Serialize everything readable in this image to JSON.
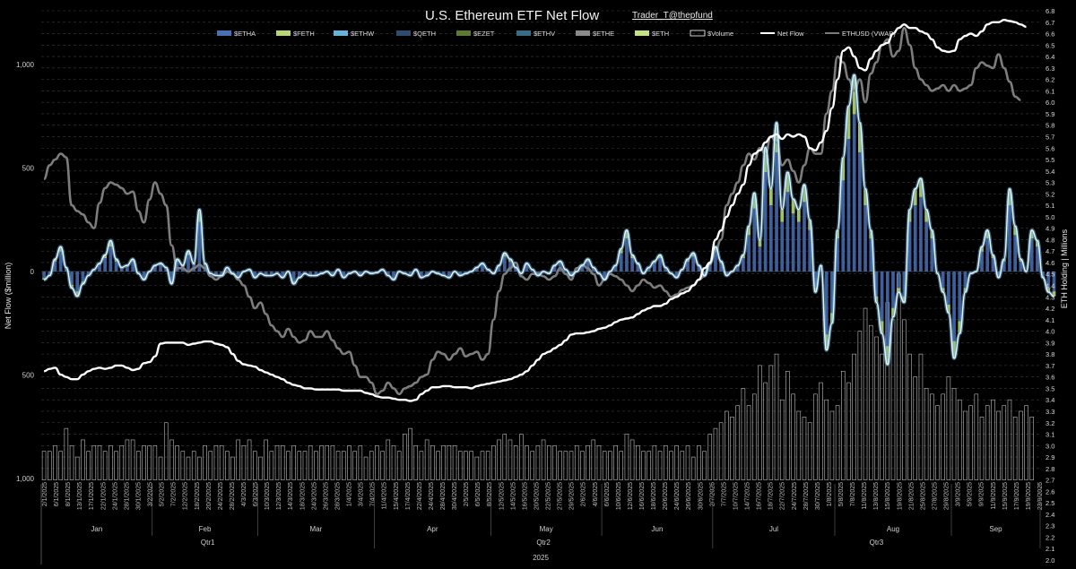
{
  "chart_data": {
    "type": "bar",
    "title": "U.S. Ethereum ETF Net Flow",
    "credit": "Trader_T@thepfund",
    "ylabel_left": "Net Flow ($million)",
    "ylabel_right": "ETH Holding | Millions",
    "left_ticks": [
      {
        "label": "1,000",
        "value": 1000,
        "color": "#dddddd"
      },
      {
        "label": "500",
        "value": 500,
        "color": "#dddddd"
      },
      {
        "label": "0",
        "value": 0,
        "color": "#dddddd"
      },
      {
        "label": "500",
        "value": -500,
        "color": "#e03b2c"
      },
      {
        "label": "1,000",
        "value": -1000,
        "color": "#e03b2c"
      }
    ],
    "ylim_left": [
      -1200,
      1300
    ],
    "ylim_right": [
      2.0,
      6.8
    ],
    "right_ticks": [
      "2.0",
      "2.1",
      "2.2",
      "2.3",
      "2.4",
      "2.5",
      "2.6",
      "2.7",
      "2.8",
      "2.9",
      "3.0",
      "3.1",
      "3.2",
      "3.3",
      "3.4",
      "3.5",
      "3.6",
      "3.7",
      "3.8",
      "3.9",
      "4.0",
      "4.1",
      "4.2",
      "4.3",
      "4.4",
      "4.5",
      "4.6",
      "4.7",
      "4.8",
      "4.9",
      "5.0",
      "5.1",
      "5.2",
      "5.3",
      "5.4",
      "5.5",
      "5.6",
      "5.7",
      "5.8",
      "5.9",
      "6.0",
      "6.1",
      "6.2",
      "6.3",
      "6.4",
      "6.5",
      "6.6",
      "6.7",
      "6.8"
    ],
    "legend": [
      {
        "name": "$ETHA",
        "kind": "bar",
        "color": "#4a6fb5"
      },
      {
        "name": "$FETH",
        "kind": "bar",
        "color": "#b6d67a"
      },
      {
        "name": "$ETHW",
        "kind": "bar",
        "color": "#6ab0d8"
      },
      {
        "name": "$QETH",
        "kind": "bar",
        "color": "#33496e"
      },
      {
        "name": "$EZET",
        "kind": "bar",
        "color": "#5d7a35"
      },
      {
        "name": "$ETHV",
        "kind": "bar",
        "color": "#3a6b82"
      },
      {
        "name": "$ETHE",
        "kind": "bar",
        "color": "#8a8a8a"
      },
      {
        "name": "$ETH",
        "kind": "bar",
        "color": "#c4e08a"
      },
      {
        "name": "$Volume",
        "kind": "box",
        "color": "#ffffff"
      },
      {
        "name": "Net Flow",
        "kind": "line",
        "color": "#ffffff"
      },
      {
        "name": "ETHUSD (VWAP)",
        "kind": "line",
        "color": "#7a7a7a"
      }
    ],
    "date_ticks": [
      "2/1/2025",
      "6/1/2025",
      "8/1/2025",
      "13/1/2025",
      "17/1/2025",
      "22/1/2025",
      "24/1/2025",
      "28/1/2025",
      "30/1/2025",
      "3/2/2025",
      "5/2/2025",
      "7/2/2025",
      "12/2/2025",
      "18/2/2025",
      "20/2/2025",
      "24/2/2025",
      "28/2/2025",
      "4/3/2025",
      "6/3/2025",
      "10/3/2025",
      "12/3/2025",
      "14/3/2025",
      "18/3/2025",
      "24/3/2025",
      "26/3/2025",
      "28/3/2025",
      "1/4/2025",
      "3/4/2025",
      "7/4/2025",
      "11/4/2025",
      "15/4/2025",
      "17/4/2025",
      "22/4/2025",
      "24/4/2025",
      "28/4/2025",
      "30/4/2025",
      "2/5/2025",
      "6/5/2025",
      "8/5/2025",
      "12/5/2025",
      "14/5/2025",
      "16/5/2025",
      "20/5/2025",
      "22/5/2025",
      "27/5/2025",
      "29/5/2025",
      "2/6/2025",
      "4/6/2025",
      "6/6/2025",
      "10/6/2025",
      "12/6/2025",
      "16/6/2025",
      "18/6/2025",
      "20/6/2025",
      "24/6/2025",
      "26/6/2025",
      "30/6/2025",
      "2/7/2025",
      "7/7/2025",
      "10/7/2025",
      "14/7/2025",
      "16/7/2025",
      "18/7/2025",
      "22/7/2025",
      "24/7/2025",
      "28/7/2025",
      "30/7/2025",
      "1/8/2025",
      "5/8/2025",
      "7/8/2025",
      "11/8/2025",
      "13/8/2025",
      "15/8/2025",
      "19/8/2025",
      "21/8/2025",
      "25/8/2025",
      "27/8/2025",
      "29/8/2025",
      "3/9/2025",
      "5/9/2025",
      "9/9/2025",
      "11/9/2025",
      "15/9/2025",
      "17/9/2025",
      "19/9/2025",
      "23/9/2025"
    ],
    "months": [
      {
        "name": "Jan",
        "start": 0,
        "end": 20
      },
      {
        "name": "Feb",
        "start": 20,
        "end": 39
      },
      {
        "name": "Mar",
        "start": 39,
        "end": 60
      },
      {
        "name": "Apr",
        "start": 60,
        "end": 81
      },
      {
        "name": "May",
        "start": 81,
        "end": 101
      },
      {
        "name": "Jun",
        "start": 101,
        "end": 121
      },
      {
        "name": "Jul",
        "start": 121,
        "end": 143
      },
      {
        "name": "Aug",
        "start": 143,
        "end": 164
      },
      {
        "name": "Sep",
        "start": 164,
        "end": 180
      }
    ],
    "quarters": [
      {
        "name": "Qtr1",
        "start": 0,
        "end": 60
      },
      {
        "name": "Qtr2",
        "start": 60,
        "end": 121
      },
      {
        "name": "Qtr3",
        "start": 121,
        "end": 180
      }
    ],
    "year": "2025",
    "n_days": 180,
    "net_flow_series": [
      -40,
      -20,
      60,
      120,
      20,
      -80,
      -120,
      -60,
      -20,
      10,
      40,
      80,
      150,
      60,
      20,
      30,
      60,
      -10,
      -40,
      0,
      30,
      40,
      20,
      -60,
      60,
      30,
      100,
      40,
      300,
      40,
      -10,
      -20,
      -20,
      20,
      -10,
      -30,
      0,
      10,
      -30,
      -10,
      -20,
      -20,
      -10,
      -30,
      0,
      -60,
      -30,
      -10,
      -20,
      -20,
      -10,
      0,
      -20,
      10,
      -30,
      -10,
      0,
      -20,
      0,
      -10,
      -5,
      10,
      -20,
      -40,
      0,
      -10,
      -20,
      10,
      -30,
      -20,
      0,
      -10,
      -20,
      -30,
      0,
      -20,
      -10,
      0,
      20,
      40,
      10,
      -10,
      30,
      90,
      60,
      20,
      -10,
      40,
      10,
      -20,
      0,
      -10,
      30,
      50,
      10,
      -20,
      0,
      30,
      60,
      20,
      -10,
      -40,
      0,
      30,
      110,
      200,
      80,
      40,
      -10,
      20,
      50,
      80,
      20,
      -10,
      -30,
      10,
      60,
      90,
      30,
      -20,
      40,
      120,
      50,
      -20,
      0,
      30,
      80,
      220,
      380,
      150,
      600,
      400,
      720,
      300,
      480,
      350,
      300,
      420,
      250,
      -100,
      30,
      -380,
      -250,
      200,
      550,
      800,
      950,
      720,
      400,
      200,
      -150,
      -300,
      -450,
      -220,
      -100,
      -150,
      300,
      400,
      450,
      300,
      200,
      -10,
      -100,
      -200,
      -420,
      -300,
      -100,
      -10,
      0,
      120,
      200,
      80,
      -30,
      60,
      400,
      220,
      60,
      0,
      200,
      150,
      -30,
      -100,
      -120
    ],
    "eth_holding_series": [
      3.65,
      3.67,
      3.68,
      3.62,
      3.6,
      3.58,
      3.58,
      3.62,
      3.65,
      3.67,
      3.68,
      3.67,
      3.68,
      3.7,
      3.7,
      3.68,
      3.66,
      3.67,
      3.72,
      3.73,
      3.78,
      3.89,
      3.9,
      3.9,
      3.9,
      3.9,
      3.88,
      3.89,
      3.9,
      3.91,
      3.91,
      3.89,
      3.88,
      3.86,
      3.8,
      3.74,
      3.71,
      3.7,
      3.69,
      3.66,
      3.64,
      3.62,
      3.6,
      3.58,
      3.55,
      3.53,
      3.52,
      3.5,
      3.5,
      3.49,
      3.49,
      3.49,
      3.49,
      3.49,
      3.48,
      3.48,
      3.48,
      3.48,
      3.46,
      3.45,
      3.43,
      3.42,
      3.42,
      3.41,
      3.4,
      3.4,
      3.39,
      3.4,
      3.45,
      3.48,
      3.51,
      3.51,
      3.52,
      3.52,
      3.51,
      3.51,
      3.51,
      3.5,
      3.52,
      3.53,
      3.54,
      3.55,
      3.56,
      3.57,
      3.58,
      3.6,
      3.62,
      3.65,
      3.7,
      3.75,
      3.8,
      3.82,
      3.85,
      3.88,
      3.92,
      3.97,
      3.98,
      3.98,
      3.99,
      4.0,
      4.02,
      4.03,
      4.05,
      4.08,
      4.1,
      4.11,
      4.12,
      4.15,
      4.18,
      4.2,
      4.22,
      4.22,
      4.24,
      4.28,
      4.3,
      4.33,
      4.35,
      4.4,
      4.45,
      4.55,
      4.6,
      4.8,
      4.88,
      5.0,
      5.1,
      5.2,
      5.28,
      5.45,
      5.55,
      5.58,
      5.65,
      5.7,
      5.72,
      5.68,
      5.72,
      5.7,
      5.72,
      5.7,
      5.6,
      5.58,
      5.65,
      5.75,
      5.95,
      6.2,
      6.45,
      6.48,
      6.4,
      6.3,
      6.28,
      6.38,
      6.45,
      6.5,
      6.52,
      6.6,
      6.65,
      6.68,
      6.65,
      6.65,
      6.62,
      6.6,
      6.55,
      6.48,
      6.45,
      6.44,
      6.45,
      6.55,
      6.58,
      6.6,
      6.58,
      6.62,
      6.68,
      6.7,
      6.7,
      6.72,
      6.71,
      6.7,
      6.68,
      6.66
    ],
    "ethusd_vwap_series": [
      5.33,
      5.45,
      5.5,
      5.55,
      5.52,
      5.1,
      5.05,
      5.02,
      4.95,
      4.9,
      5.12,
      5.25,
      5.3,
      5.28,
      5.25,
      5.2,
      5.22,
      5.05,
      4.95,
      5.15,
      5.3,
      5.2,
      5.1,
      4.75,
      4.55,
      4.55,
      4.52,
      4.55,
      4.58,
      4.55,
      4.48,
      4.45,
      4.48,
      4.52,
      4.5,
      4.45,
      4.4,
      4.3,
      4.2,
      4.25,
      4.15,
      4.05,
      4.0,
      3.95,
      4.02,
      3.95,
      3.9,
      3.92,
      4.0,
      3.95,
      3.95,
      4.0,
      3.92,
      3.85,
      3.8,
      3.82,
      3.7,
      3.6,
      3.6,
      3.55,
      3.45,
      3.48,
      3.55,
      3.5,
      3.45,
      3.5,
      3.52,
      3.55,
      3.6,
      3.62,
      3.75,
      3.82,
      3.8,
      3.75,
      3.8,
      3.85,
      3.78,
      3.8,
      3.82,
      3.75,
      3.8,
      4.1,
      4.35,
      4.5,
      4.55,
      4.6,
      4.48,
      4.45,
      4.5,
      4.5,
      4.48,
      4.45,
      4.48,
      4.55,
      4.5,
      4.45,
      4.55,
      4.58,
      4.55,
      4.5,
      4.4,
      4.45,
      4.5,
      4.48,
      4.45,
      4.4,
      4.35,
      4.4,
      4.45,
      4.42,
      4.38,
      4.4,
      4.35,
      4.3,
      4.32,
      4.36,
      4.38,
      4.4,
      4.45,
      4.48,
      4.6,
      4.7,
      4.8,
      5.1,
      5.2,
      5.3,
      5.45,
      5.55,
      5.5,
      5.6,
      5.55,
      5.7,
      5.65,
      5.45,
      5.5,
      5.4,
      5.3,
      5.45,
      5.6,
      5.55,
      5.55,
      5.9,
      6.1,
      6.4,
      6.35,
      6.2,
      6.1,
      6.2,
      6.0,
      6.25,
      6.35,
      6.5,
      6.55,
      6.4,
      6.45,
      6.65,
      6.5,
      6.3,
      6.2,
      6.15,
      6.1,
      6.12,
      6.15,
      6.1,
      6.15,
      6.1,
      6.12,
      6.15,
      6.3,
      6.35,
      6.32,
      6.3,
      6.42,
      6.3,
      6.18,
      6.05,
      6.02
    ],
    "volume_series": [
      0.5,
      0.5,
      0.6,
      0.5,
      0.9,
      0.6,
      0.4,
      0.7,
      0.5,
      0.6,
      0.6,
      0.5,
      0.6,
      0.5,
      0.6,
      0.7,
      0.7,
      0.5,
      0.6,
      0.6,
      0.6,
      0.4,
      1.0,
      0.7,
      0.6,
      0.5,
      0.4,
      0.5,
      0.4,
      0.6,
      0.5,
      0.6,
      0.6,
      0.5,
      0.4,
      0.7,
      0.6,
      0.7,
      0.5,
      0.4,
      0.7,
      0.5,
      0.6,
      0.6,
      0.5,
      0.6,
      0.5,
      0.5,
      0.6,
      0.5,
      0.6,
      0.6,
      0.6,
      0.5,
      0.5,
      0.6,
      0.5,
      0.6,
      0.4,
      0.5,
      0.6,
      0.5,
      0.7,
      0.6,
      0.5,
      0.8,
      0.9,
      0.6,
      0.5,
      0.7,
      0.6,
      0.5,
      0.6,
      0.6,
      0.6,
      0.5,
      0.5,
      0.5,
      0.4,
      0.5,
      0.5,
      0.6,
      0.7,
      0.8,
      0.7,
      0.6,
      0.8,
      0.6,
      0.5,
      0.6,
      0.7,
      0.6,
      0.6,
      0.5,
      0.5,
      0.5,
      0.6,
      0.5,
      0.6,
      0.7,
      0.6,
      0.5,
      0.5,
      0.6,
      0.5,
      0.8,
      0.7,
      0.6,
      0.5,
      0.5,
      0.6,
      0.5,
      0.6,
      0.5,
      0.6,
      0.5,
      0.6,
      0.4,
      0.6,
      0.5,
      0.8,
      0.9,
      1.0,
      1.2,
      1.1,
      1.3,
      1.6,
      1.3,
      1.5,
      2.0,
      1.7,
      2.0,
      2.2,
      1.4,
      1.9,
      1.5,
      1.2,
      1.1,
      1.0,
      1.5,
      1.7,
      1.4,
      1.2,
      1.3,
      1.9,
      1.7,
      2.2,
      2.6,
      3.0,
      2.7,
      2.5,
      2.2,
      3.1,
      2.8,
      3.6,
      2.8,
      2.2,
      1.8,
      2.2,
      1.6,
      1.5,
      1.3,
      1.5,
      1.8,
      1.6,
      1.4,
      1.2,
      1.3,
      1.5,
      1.1,
      1.3,
      1.4,
      1.2,
      1.3,
      1.4,
      1.1,
      1.2,
      1.3,
      1.1
    ]
  }
}
